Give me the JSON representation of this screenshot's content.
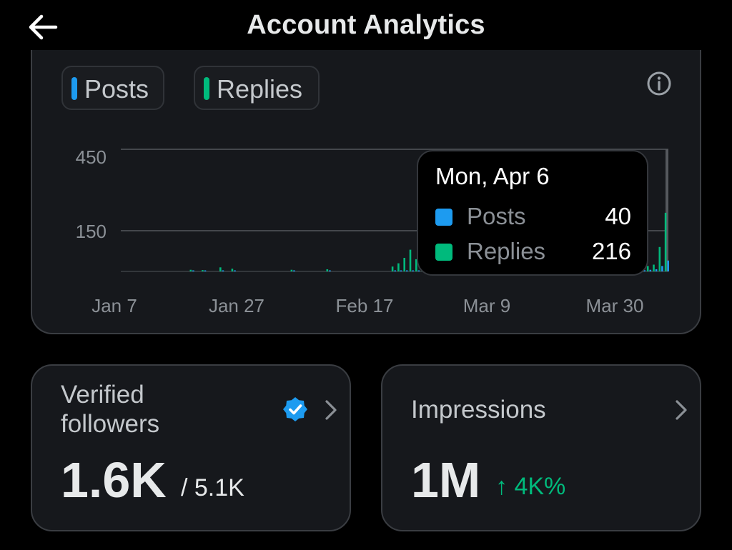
{
  "header": {
    "title": "Account Analytics"
  },
  "legend": {
    "posts_label": "Posts",
    "replies_label": "Replies"
  },
  "chart_data": {
    "type": "bar",
    "y_ticks": [
      "450",
      "150"
    ],
    "x_tick_labels": [
      "Jan 7",
      "Jan 27",
      "Feb 17",
      "Mar 9",
      "Mar 30"
    ],
    "grid": true,
    "colors": {
      "posts": "#1d9bf0",
      "replies": "#00ba7c"
    },
    "series": [
      {
        "name": "Posts",
        "values": [
          0,
          0,
          0,
          0,
          0,
          0,
          0,
          0,
          0,
          0,
          0,
          0,
          1,
          0,
          1,
          0,
          0,
          2,
          0,
          1,
          0,
          0,
          0,
          0,
          0,
          0,
          0,
          0,
          0,
          1,
          0,
          0,
          0,
          0,
          0,
          1,
          0,
          0,
          0,
          0,
          0,
          0,
          0,
          0,
          0,
          0,
          2,
          3,
          2,
          2,
          3,
          2,
          3,
          4,
          3,
          4,
          5,
          2,
          4,
          3,
          6,
          4,
          5,
          3,
          5,
          4,
          3,
          6,
          5,
          4,
          7,
          5,
          6,
          4,
          5,
          6,
          7,
          5,
          8,
          6,
          5,
          7,
          6,
          8,
          10,
          5,
          6,
          7,
          5,
          6,
          8,
          20,
          40
        ]
      },
      {
        "name": "Replies",
        "values": [
          0,
          0,
          0,
          0,
          0,
          0,
          0,
          0,
          0,
          0,
          0,
          0,
          6,
          0,
          5,
          0,
          0,
          15,
          0,
          10,
          0,
          0,
          0,
          0,
          0,
          0,
          0,
          0,
          0,
          6,
          0,
          0,
          0,
          0,
          0,
          8,
          0,
          0,
          0,
          0,
          0,
          0,
          0,
          0,
          0,
          0,
          18,
          30,
          50,
          80,
          45,
          75,
          100,
          60,
          125,
          190,
          95,
          175,
          60,
          85,
          130,
          50,
          95,
          190,
          70,
          100,
          110,
          60,
          140,
          80,
          120,
          165,
          85,
          260,
          245,
          150,
          255,
          200,
          110,
          165,
          80,
          135,
          55,
          60,
          185,
          45,
          110,
          45,
          35,
          20,
          25,
          90,
          216
        ]
      }
    ]
  },
  "tooltip": {
    "date": "Mon, Apr 6",
    "posts_label": "Posts",
    "posts_value": "40",
    "replies_label": "Replies",
    "replies_value": "216"
  },
  "cards": {
    "followers": {
      "label_line1": "Verified",
      "label_line2": "followers",
      "value": "1.6K",
      "total": "/ 5.1K",
      "badge_color": "#1d9bf0"
    },
    "impressions": {
      "label": "Impressions",
      "value": "1M",
      "change": "↑ 4K%",
      "change_color": "#00ba7c"
    }
  }
}
